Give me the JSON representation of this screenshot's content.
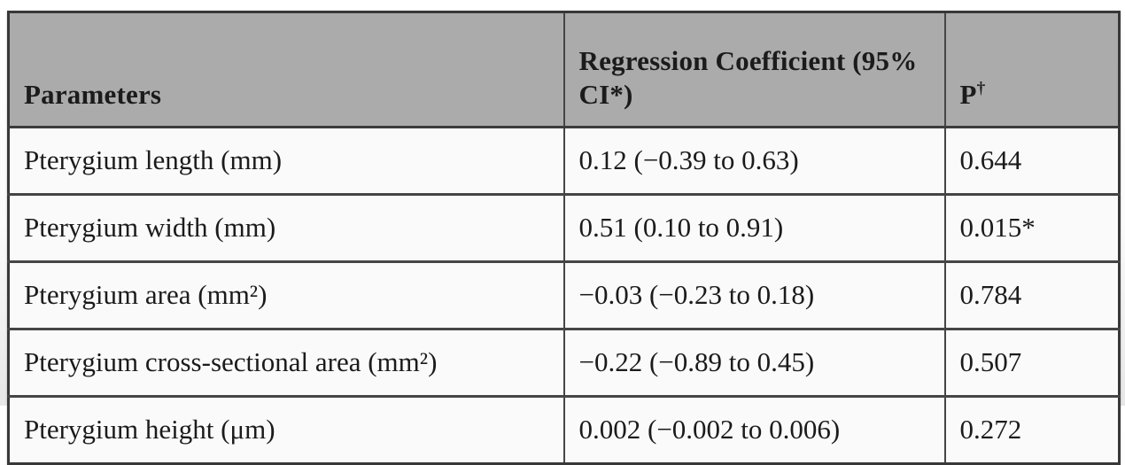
{
  "colors": {
    "header_background": "#ababab",
    "row_background": "#fafafa",
    "table_border": "#3c3c3c",
    "text": "#1b1b1b",
    "page_background_top": "#ffffff",
    "page_background_bottom": "#e7e7e7"
  },
  "table": {
    "columns": [
      {
        "label": "Parameters"
      },
      {
        "label": "Regression Coefficient (95% CI*)"
      },
      {
        "label": "P",
        "superscript": "†"
      }
    ],
    "rows": [
      {
        "parameter": "Pterygium length (mm)",
        "coefficient": "0.12 (−0.39 to 0.63)",
        "p": "0.644"
      },
      {
        "parameter": "Pterygium width (mm)",
        "coefficient": "0.51 (0.10 to 0.91)",
        "p": "0.015*"
      },
      {
        "parameter": "Pterygium area (mm²)",
        "coefficient": "−0.03 (−0.23 to 0.18)",
        "p": "0.784"
      },
      {
        "parameter": "Pterygium cross-sectional area (mm²)",
        "coefficient": "−0.22 (−0.89 to 0.45)",
        "p": "0.507"
      },
      {
        "parameter": "Pterygium height (μm)",
        "coefficient": "0.002 (−0.002 to 0.006)",
        "p": "0.272"
      }
    ]
  }
}
